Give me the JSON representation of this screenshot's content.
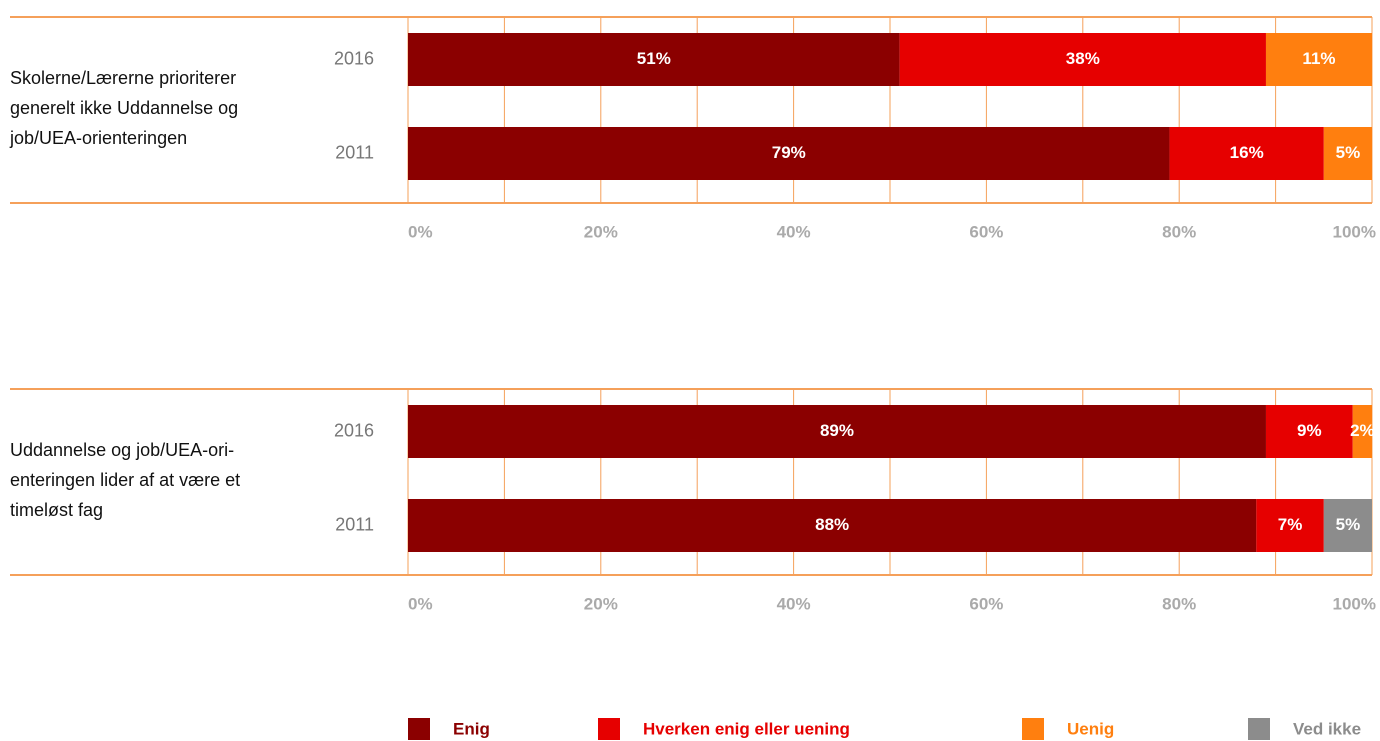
{
  "legend": [
    {
      "name": "Enig",
      "color": "#8b0000"
    },
    {
      "name": "Hverken enig eller uening",
      "color": "#e60000"
    },
    {
      "name": "Uenig",
      "color": "#ff7f0f"
    },
    {
      "name": "Ved ikke",
      "color": "#8c8c8c"
    }
  ],
  "chart_data": [
    {
      "type": "bar",
      "orientation": "horizontal",
      "stacked": true,
      "label_lines": [
        "Skolerne/Lærerne prioriterer",
        "generelt ikke Uddannelse og",
        "job/UEA-orienteringen"
      ],
      "categories": [
        "2016",
        "2011"
      ],
      "series": [
        {
          "values": [
            51,
            79
          ],
          "value_labels": [
            "51%",
            "79%"
          ]
        },
        {
          "values": [
            38,
            16
          ],
          "value_labels": [
            "38%",
            "16%"
          ]
        },
        {
          "values": [
            11,
            5
          ],
          "value_labels": [
            "11%",
            "5%"
          ]
        },
        {
          "values": [
            null,
            null
          ],
          "value_labels": [
            null,
            null
          ]
        }
      ],
      "xlim": [
        0,
        100
      ],
      "xticks": [
        {
          "value": 0,
          "label": "0%"
        },
        {
          "value": 20,
          "label": "20%"
        },
        {
          "value": 40,
          "label": "40%"
        },
        {
          "value": 60,
          "label": "60%"
        },
        {
          "value": 80,
          "label": "80%"
        },
        {
          "value": 100,
          "label": "100%"
        }
      ],
      "xgrid": [
        0,
        10,
        20,
        30,
        40,
        50,
        60,
        70,
        80,
        90,
        100
      ]
    },
    {
      "type": "bar",
      "orientation": "horizontal",
      "stacked": true,
      "label_lines": [
        "Uddannelse og job/UEA-ori-",
        "enteringen lider af at være et",
        "timeløst fag"
      ],
      "categories": [
        "2016",
        "2011"
      ],
      "series": [
        {
          "values": [
            89,
            88
          ],
          "value_labels": [
            "89%",
            "88%"
          ]
        },
        {
          "values": [
            9,
            7
          ],
          "value_labels": [
            "9%",
            "7%"
          ]
        },
        {
          "values": [
            2,
            null
          ],
          "value_labels": [
            "2%",
            null
          ]
        },
        {
          "values": [
            null,
            5
          ],
          "value_labels": [
            null,
            "5%"
          ]
        }
      ],
      "xlim": [
        0,
        100
      ],
      "xticks": [
        {
          "value": 0,
          "label": "0%"
        },
        {
          "value": 20,
          "label": "20%"
        },
        {
          "value": 40,
          "label": "40%"
        },
        {
          "value": 60,
          "label": "60%"
        },
        {
          "value": 80,
          "label": "80%"
        },
        {
          "value": 100,
          "label": "100%"
        }
      ],
      "xgrid": [
        0,
        10,
        20,
        30,
        40,
        50,
        60,
        70,
        80,
        90,
        100
      ]
    }
  ]
}
